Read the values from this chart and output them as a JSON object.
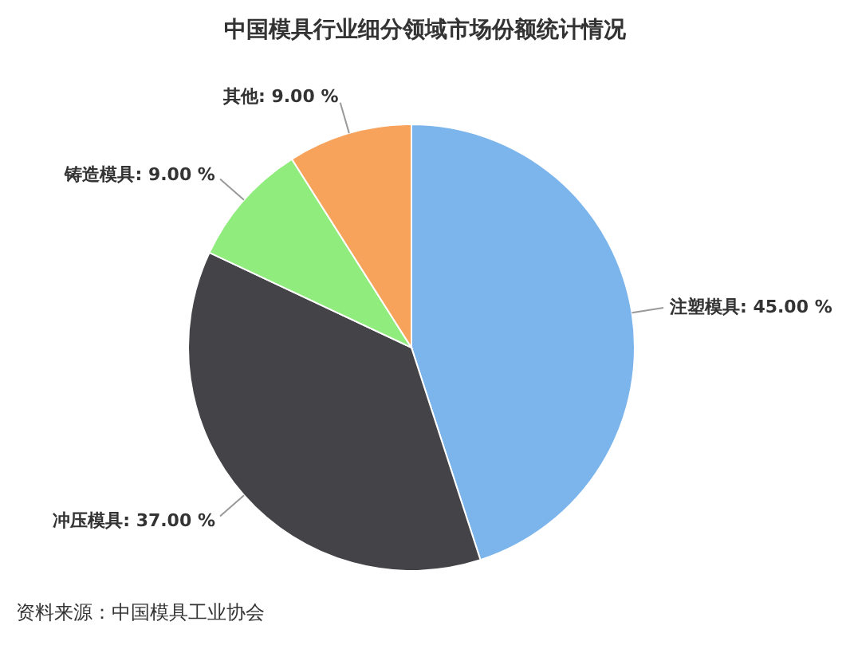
{
  "chart_data": {
    "type": "pie",
    "title": "中国模具行业细分领域市场份额统计情况",
    "categories": [
      "注塑模具",
      "冲压模具",
      "铸造模具",
      "其他"
    ],
    "values": [
      45,
      37,
      9,
      9
    ],
    "colors": [
      "#7cb5ec",
      "#434348",
      "#90ed7d",
      "#f7a35c"
    ],
    "value_labels": [
      "45.00 %",
      "37.00 %",
      "9.00 %",
      "9.00 %"
    ],
    "legend": false,
    "annotations": [
      "资料来源：中国模具工业协会"
    ]
  }
}
